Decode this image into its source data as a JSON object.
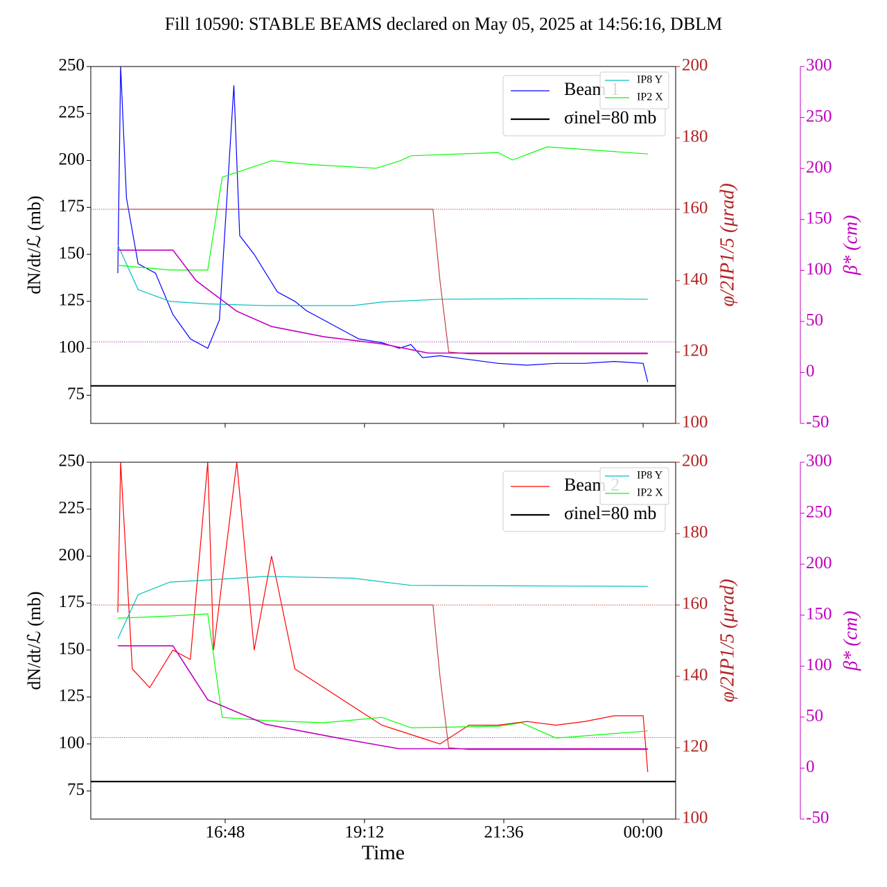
{
  "chart_data": [
    {
      "type": "line",
      "title": "Fill 10590: STABLE BEAMS declared on May 05, 2025 at 14:56:16, DBLM",
      "ylabel": "dN/dt/ℒ (mb)",
      "y2label": "φ/2IP1/5 (μrad)",
      "y3label": "β* (cm)",
      "xlim": [
        14.485,
        24.56
      ],
      "xticks": [
        {
          "value": 16.8,
          "label": "16:48"
        },
        {
          "value": 19.2,
          "label": "19:12"
        },
        {
          "value": 21.6,
          "label": "21:36"
        },
        {
          "value": 24.0,
          "label": "00:00"
        }
      ],
      "ylim": [
        60,
        250
      ],
      "yticks": [
        75,
        100,
        125,
        150,
        175,
        200,
        225,
        250
      ],
      "y2lim": [
        100,
        200
      ],
      "y2ticks": [
        100,
        120,
        140,
        160,
        180,
        200
      ],
      "y3lim": [
        -50,
        300
      ],
      "y3ticks": [
        -50,
        0,
        50,
        100,
        150,
        200,
        250,
        300
      ],
      "hlines": [
        {
          "axis": "y2",
          "value": 160,
          "color": "#b22222"
        },
        {
          "axis": "y3",
          "value": 30,
          "color": "#c000c0"
        }
      ],
      "series": [
        {
          "name": "Beam 1",
          "color": "#0000ff",
          "axis": "y",
          "x": [
            14.95,
            15.0,
            15.1,
            15.3,
            15.6,
            15.9,
            16.2,
            16.5,
            16.7,
            16.95,
            17.05,
            17.3,
            17.5,
            17.7,
            18.0,
            18.2,
            18.5,
            18.8,
            19.1,
            19.5,
            19.8,
            20.0,
            20.2,
            20.5,
            21.0,
            21.5,
            22.0,
            22.5,
            23.0,
            23.5,
            24.0,
            24.08
          ],
          "values": [
            140,
            250,
            180,
            145,
            140,
            118,
            105,
            100,
            115,
            240,
            160,
            150,
            140,
            130,
            125,
            120,
            115,
            110,
            105,
            103,
            100,
            102,
            95,
            96,
            94,
            92,
            91,
            92,
            92,
            93,
            92,
            82
          ]
        },
        {
          "name": "σinel=80 mb",
          "color": "#000000",
          "axis": "y",
          "x": [
            14.485,
            24.56
          ],
          "values": [
            80,
            80
          ]
        },
        {
          "name": "IP8 Y",
          "color": "#00bfbf",
          "axis": "y2",
          "x": [
            14.95,
            15.3,
            15.85,
            16.5,
            17.5,
            19.0,
            19.5,
            20.5,
            22.5,
            24.08
          ],
          "values": [
            150,
            137.5,
            134.2,
            133.5,
            133,
            133,
            134,
            134.8,
            135,
            134.8
          ]
        },
        {
          "name": "IP2 X",
          "color": "#00ff00",
          "axis": "y2",
          "x": [
            14.95,
            15.85,
            16.5,
            16.75,
            17.6,
            18.3,
            19.4,
            19.8,
            20.0,
            21.5,
            21.75,
            22.35,
            24.08
          ],
          "values": [
            144.3,
            143,
            143,
            169,
            173.6,
            172.5,
            171.5,
            173.5,
            175,
            175.9,
            173.8,
            177.5,
            175.5
          ]
        },
        {
          "color": "#c04040",
          "axis": "y2",
          "x": [
            14.95,
            20.38,
            20.5,
            20.65,
            21.0,
            24.08
          ],
          "values": [
            160,
            160,
            140,
            120,
            119.5,
            119.5
          ]
        },
        {
          "color": "#c000c0",
          "axis": "y3",
          "x": [
            14.95,
            15.9,
            16.3,
            17.0,
            17.6,
            18.5,
            19.5,
            20.3,
            24.08
          ],
          "values": [
            120,
            120,
            90,
            60,
            45,
            35,
            28,
            19,
            19
          ]
        }
      ]
    },
    {
      "type": "line",
      "xlabel": "Time",
      "ylabel": "dN/dt/ℒ (mb)",
      "y2label": "φ/2IP1/5 (μrad)",
      "y3label": "β* (cm)",
      "xlim": [
        14.485,
        24.56
      ],
      "xticks": [
        {
          "value": 16.8,
          "label": "16:48"
        },
        {
          "value": 19.2,
          "label": "19:12"
        },
        {
          "value": 21.6,
          "label": "21:36"
        },
        {
          "value": 24.0,
          "label": "00:00"
        }
      ],
      "ylim": [
        60,
        250
      ],
      "yticks": [
        75,
        100,
        125,
        150,
        175,
        200,
        225,
        250
      ],
      "y2lim": [
        100,
        200
      ],
      "y2ticks": [
        100,
        120,
        140,
        160,
        180,
        200
      ],
      "y3lim": [
        -50,
        300
      ],
      "y3ticks": [
        -50,
        0,
        50,
        100,
        150,
        200,
        250,
        300
      ],
      "hlines": [
        {
          "axis": "y2",
          "value": 160,
          "color": "#b22222"
        },
        {
          "axis": "y3",
          "value": 30,
          "color": "#c000c0"
        }
      ],
      "series": [
        {
          "name": "Beam 2",
          "color": "#ff0000",
          "axis": "y",
          "x": [
            14.95,
            15.0,
            15.2,
            15.5,
            15.9,
            16.2,
            16.5,
            16.6,
            17.0,
            17.3,
            17.6,
            18.0,
            18.5,
            19.0,
            19.5,
            20.0,
            20.5,
            21.0,
            21.5,
            22.0,
            22.5,
            23.0,
            23.5,
            24.0,
            24.08
          ],
          "values": [
            170,
            250,
            140,
            130,
            150,
            145,
            250,
            150,
            250,
            150,
            200,
            140,
            130,
            120,
            110,
            105,
            100,
            110,
            110,
            112,
            110,
            112,
            115,
            115,
            85
          ]
        },
        {
          "name": "σinel=80 mb",
          "color": "#000000",
          "axis": "y",
          "x": [
            14.485,
            24.56
          ],
          "values": [
            80,
            80
          ]
        },
        {
          "name": "IP8 Y",
          "color": "#00bfbf",
          "axis": "y2",
          "x": [
            14.95,
            15.3,
            15.85,
            16.5,
            17.5,
            19.0,
            20.0,
            22.5,
            24.08
          ],
          "values": [
            150.5,
            162.9,
            166.4,
            167,
            168,
            167.5,
            165.5,
            165.3,
            165.2
          ]
        },
        {
          "name": "IP2 X",
          "color": "#00ff00",
          "axis": "y2",
          "x": [
            14.95,
            15.85,
            16.5,
            16.75,
            17.5,
            18.5,
            19.5,
            20.0,
            21.5,
            21.9,
            22.5,
            24.08
          ],
          "values": [
            156.3,
            156.9,
            157.5,
            128.5,
            127.6,
            127,
            128.5,
            125.6,
            126,
            127,
            122.7,
            124.7
          ]
        },
        {
          "color": "#c04040",
          "axis": "y2",
          "x": [
            14.95,
            20.38,
            20.5,
            20.65,
            21.0,
            24.08
          ],
          "values": [
            160,
            160,
            140,
            120,
            119.5,
            119.5
          ]
        },
        {
          "color": "#c000c0",
          "axis": "y3",
          "x": [
            14.95,
            15.9,
            16.5,
            17.5,
            18.7,
            19.8,
            24.08
          ],
          "values": [
            120,
            120,
            67,
            43,
            30,
            19,
            19
          ]
        }
      ]
    }
  ]
}
